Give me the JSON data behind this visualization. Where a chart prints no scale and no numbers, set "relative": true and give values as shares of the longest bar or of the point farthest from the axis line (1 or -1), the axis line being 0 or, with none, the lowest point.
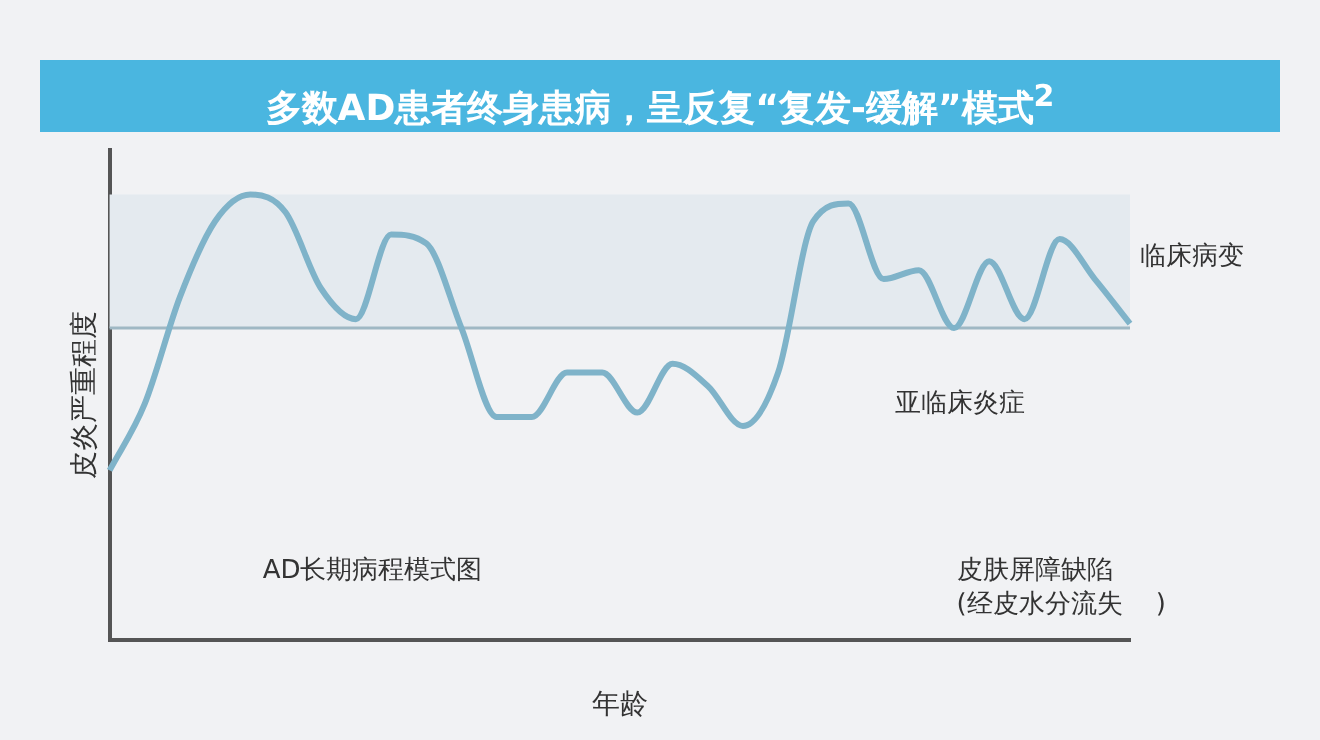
{
  "chart_data": {
    "type": "line",
    "relative": true,
    "title": "多数AD患者终身患病，呈反复“复发-缓解”模式$^{2}$",
    "xlabel": "年龄",
    "ylabel": "皮炎严重程度",
    "categories": [
      null,
      null,
      null,
      null,
      null,
      null,
      null,
      null,
      null,
      null,
      null,
      null,
      null,
      null,
      null,
      null,
      null,
      null,
      null,
      null,
      null,
      null,
      null,
      null,
      null,
      null,
      null,
      null,
      null,
      null
    ],
    "series": [
      {
        "color": "#7fb3c9",
        "values": [
          0.38,
          0.53,
          0.77,
          0.94,
          1,
          0.96,
          0.79,
          0.72,
          0.91,
          0.89,
          0.7,
          0.5,
          0.5,
          0.6,
          0.6,
          0.51,
          0.62,
          0.57,
          0.48,
          0.6,
          0.94,
          0.98,
          0.81,
          0.83,
          0.7,
          0.85,
          0.72,
          0.9,
          0.81,
          0.71
        ]
      }
    ],
    "ref_lines": [
      {
        "axis": "y",
        "value": 0.7,
        "color": "#9fb8c4"
      }
    ],
    "bands": [
      {
        "axis": "y",
        "from": 0.7,
        "to": 1,
        "color": "#e4eaef"
      }
    ],
    "annotations": [
      "临床病变",
      "亚临床炎症",
      "AD长期病程模式图",
      "皮肤屏障缺陷\n(经皮水分流失    )"
    ],
    "grid": false,
    "legend": false,
    "marker": "none",
    "line_style": "solid"
  }
}
